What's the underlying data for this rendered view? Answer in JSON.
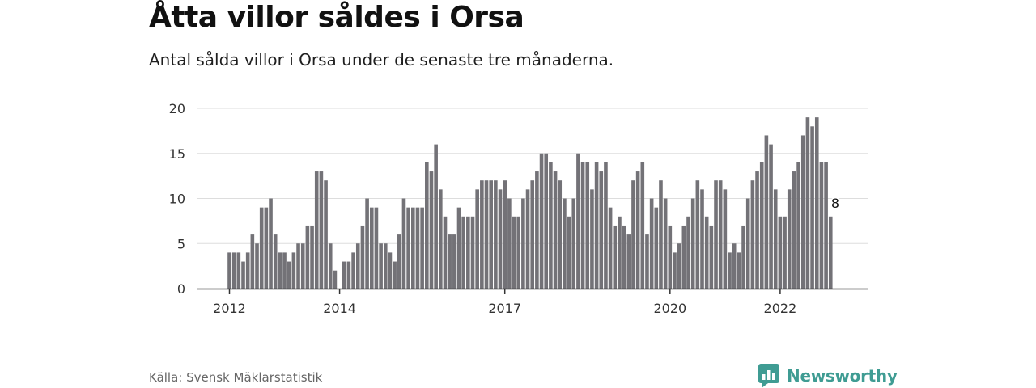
{
  "title": "Åtta villor såldes i Orsa",
  "subtitle": "Antal sålda villor i Orsa under de senaste tre månaderna.",
  "source": "Källa: Svensk Mäklarstatistik",
  "brand": {
    "name": "Newsworthy",
    "icon": "newsworthy-logo-icon",
    "color": "#3f9c93"
  },
  "colors": {
    "bar": "#737277",
    "highlight": "#2a9d8f",
    "grid": "#dddddd",
    "axis": "#333333"
  },
  "chart_data": {
    "type": "bar",
    "title": "Åtta villor såldes i Orsa",
    "subtitle": "Antal sålda villor i Orsa under de senaste tre månaderna.",
    "xlabel": "",
    "ylabel": "",
    "ylim": [
      0,
      20
    ],
    "yticks": [
      0,
      5,
      10,
      15,
      20
    ],
    "xtick_labels": [
      {
        "label": "2012",
        "index": 0
      },
      {
        "label": "2014",
        "index": 24
      },
      {
        "label": "2017",
        "index": 60
      },
      {
        "label": "2020",
        "index": 96
      },
      {
        "label": "2022",
        "index": 120
      }
    ],
    "start_month": "2012-01",
    "grid": true,
    "legend": "none",
    "highlight": {
      "index": 132,
      "value": 8,
      "label": "8"
    },
    "values": [
      4,
      4,
      4,
      3,
      4,
      6,
      5,
      9,
      9,
      10,
      6,
      4,
      4,
      3,
      4,
      5,
      5,
      7,
      7,
      13,
      13,
      12,
      5,
      2,
      0,
      3,
      3,
      4,
      5,
      7,
      10,
      9,
      9,
      5,
      5,
      4,
      3,
      6,
      10,
      9,
      9,
      9,
      9,
      14,
      13,
      16,
      11,
      8,
      6,
      6,
      9,
      8,
      8,
      8,
      11,
      12,
      12,
      12,
      12,
      11,
      12,
      10,
      8,
      8,
      10,
      11,
      12,
      13,
      15,
      15,
      14,
      13,
      12,
      10,
      8,
      10,
      15,
      14,
      14,
      11,
      14,
      13,
      14,
      9,
      7,
      8,
      7,
      6,
      12,
      13,
      14,
      6,
      10,
      9,
      12,
      10,
      7,
      4,
      5,
      7,
      8,
      10,
      12,
      11,
      8,
      7,
      12,
      12,
      11,
      4,
      5,
      4,
      7,
      10,
      12,
      13,
      14,
      17,
      16,
      11,
      8,
      8,
      11,
      13,
      14,
      17,
      19,
      18,
      19,
      14,
      14,
      8
    ]
  }
}
